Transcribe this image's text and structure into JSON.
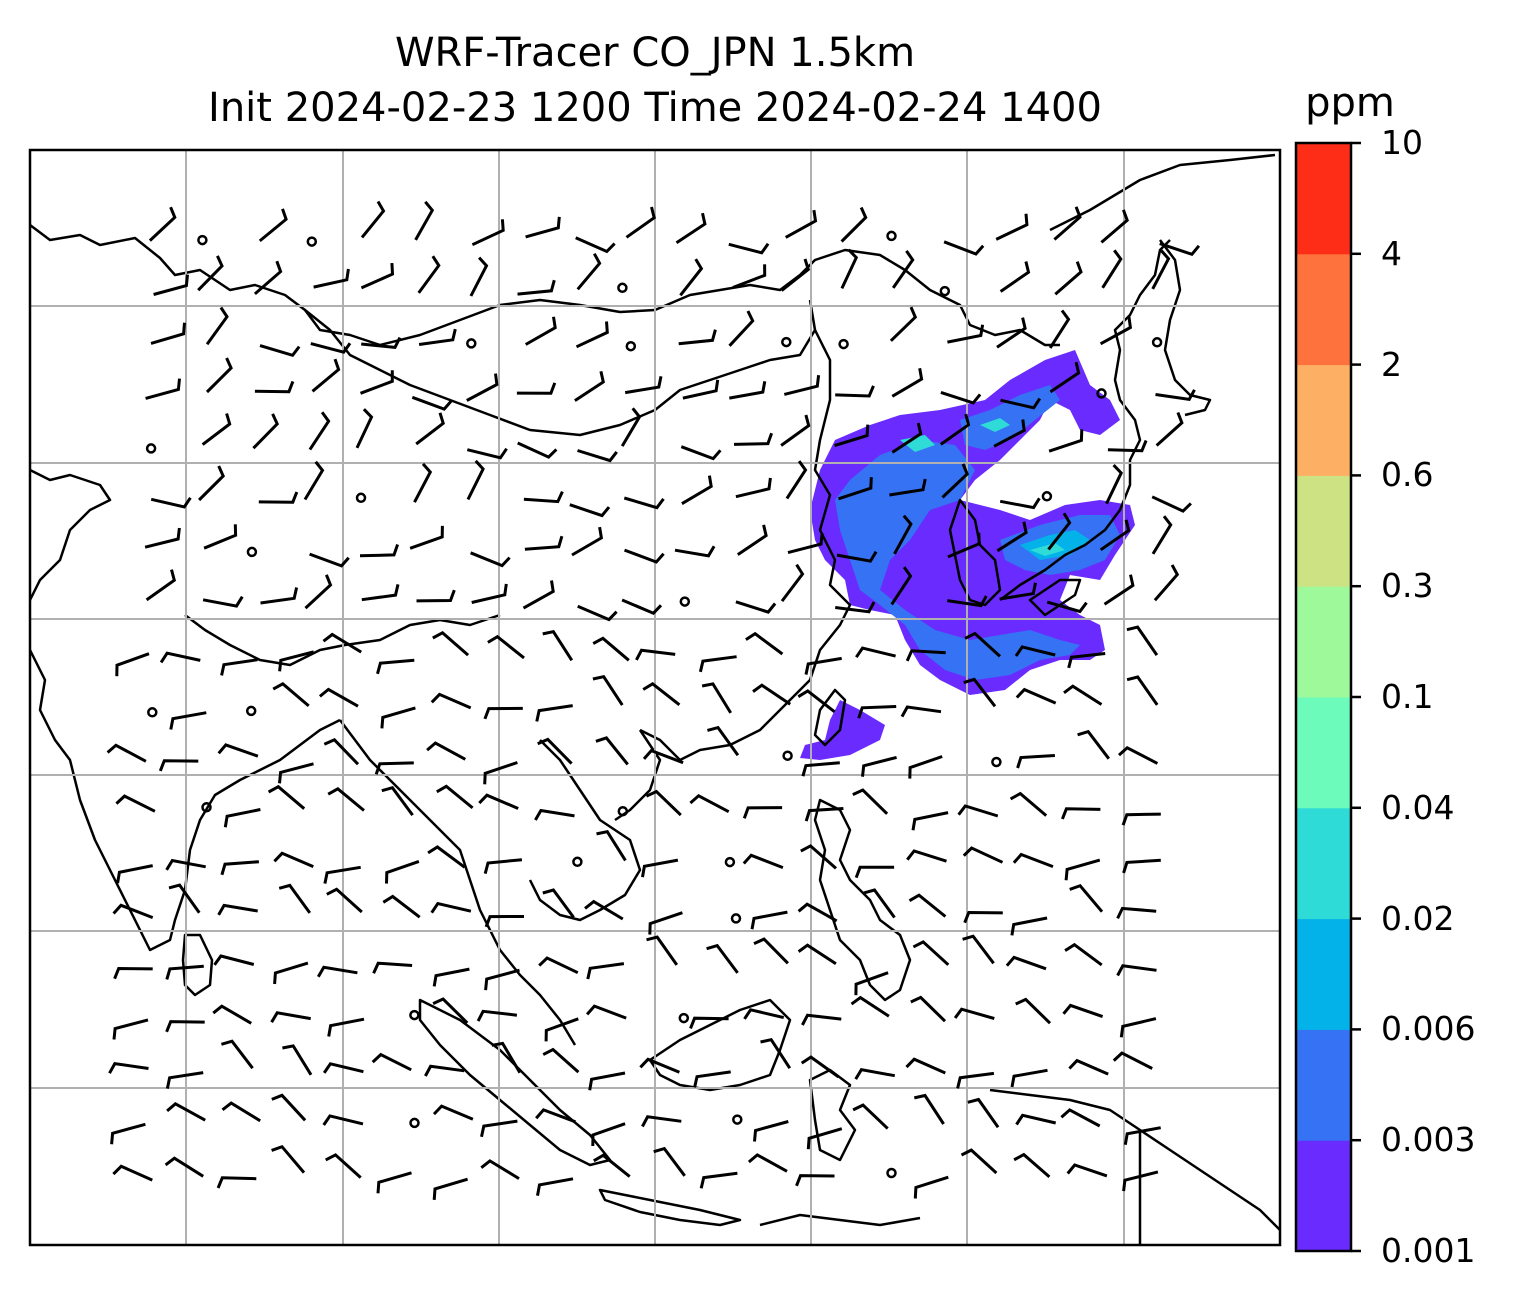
{
  "title": {
    "line1": "WRF-Tracer CO_JPN 1.5km",
    "line2": "Init 2024-02-23 1200 Time 2024-02-24 1400"
  },
  "colorbar": {
    "unit": "ppm",
    "levels": [
      "0.001",
      "0.003",
      "0.006",
      "0.02",
      "0.04",
      "0.1",
      "0.3",
      "0.6",
      "2",
      "4",
      "10"
    ],
    "colors": [
      "#6a2bff",
      "#3572f4",
      "#04b2ea",
      "#2fdbd6",
      "#6cfbbb",
      "#9ef99a",
      "#cde283",
      "#fdb064",
      "#fe723d",
      "#fe2d18"
    ]
  },
  "map": {
    "field": "CO tracer concentration",
    "overlay": "wind barbs",
    "gridlines": true,
    "coastlines": true,
    "borders": true
  }
}
